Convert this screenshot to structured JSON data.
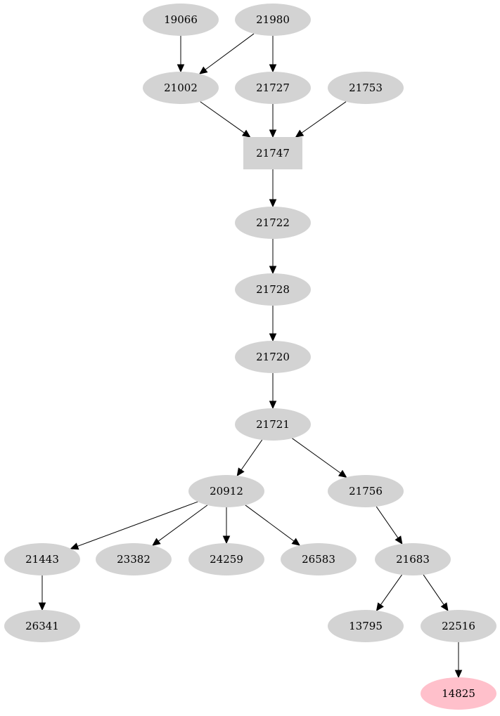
{
  "colors": {
    "node_fill": "#d3d3d3",
    "highlight_fill": "#ffc0cb",
    "edge": "#000000"
  },
  "nodes": [
    {
      "id": "19066",
      "shape": "ellipse"
    },
    {
      "id": "21980",
      "shape": "ellipse"
    },
    {
      "id": "21002",
      "shape": "ellipse"
    },
    {
      "id": "21727",
      "shape": "ellipse"
    },
    {
      "id": "21753",
      "shape": "ellipse"
    },
    {
      "id": "21747",
      "shape": "box"
    },
    {
      "id": "21722",
      "shape": "ellipse"
    },
    {
      "id": "21728",
      "shape": "ellipse"
    },
    {
      "id": "21720",
      "shape": "ellipse"
    },
    {
      "id": "21721",
      "shape": "ellipse"
    },
    {
      "id": "20912",
      "shape": "ellipse"
    },
    {
      "id": "21756",
      "shape": "ellipse"
    },
    {
      "id": "21443",
      "shape": "ellipse"
    },
    {
      "id": "23382",
      "shape": "ellipse"
    },
    {
      "id": "24259",
      "shape": "ellipse"
    },
    {
      "id": "26583",
      "shape": "ellipse"
    },
    {
      "id": "21683",
      "shape": "ellipse"
    },
    {
      "id": "26341",
      "shape": "ellipse"
    },
    {
      "id": "13795",
      "shape": "ellipse"
    },
    {
      "id": "22516",
      "shape": "ellipse"
    },
    {
      "id": "14825",
      "shape": "ellipse",
      "highlight": true
    }
  ],
  "edges": [
    [
      "19066",
      "21002"
    ],
    [
      "21980",
      "21002"
    ],
    [
      "21980",
      "21727"
    ],
    [
      "21002",
      "21747"
    ],
    [
      "21727",
      "21747"
    ],
    [
      "21753",
      "21747"
    ],
    [
      "21747",
      "21722"
    ],
    [
      "21722",
      "21728"
    ],
    [
      "21728",
      "21720"
    ],
    [
      "21720",
      "21721"
    ],
    [
      "21721",
      "20912"
    ],
    [
      "21721",
      "21756"
    ],
    [
      "20912",
      "21443"
    ],
    [
      "20912",
      "23382"
    ],
    [
      "20912",
      "24259"
    ],
    [
      "20912",
      "26583"
    ],
    [
      "21756",
      "21683"
    ],
    [
      "21443",
      "26341"
    ],
    [
      "21683",
      "13795"
    ],
    [
      "21683",
      "22516"
    ],
    [
      "22516",
      "14825"
    ]
  ]
}
